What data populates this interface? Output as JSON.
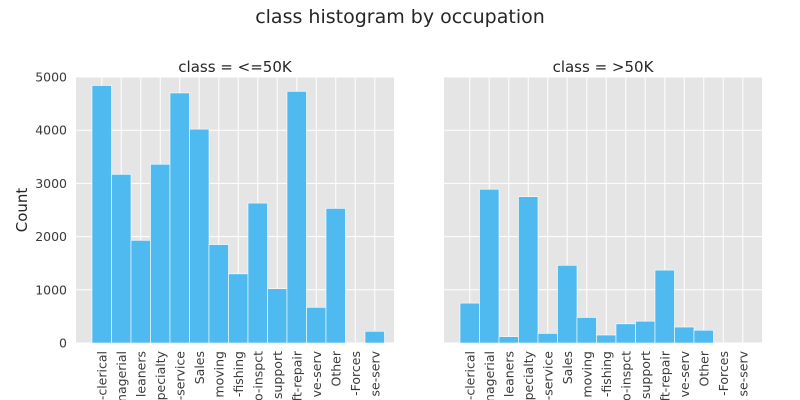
{
  "figure": {
    "title": "class histogram by occupation"
  },
  "chart_data": [
    {
      "type": "bar",
      "title": "class = <=50K",
      "xlabel": "",
      "ylabel": "Count",
      "ylim": [
        0,
        5000
      ],
      "yticks": [
        0,
        1000,
        2000,
        3000,
        4000,
        5000
      ],
      "grid": true,
      "color": "#4fbaf0",
      "background": "#e5e5e5",
      "categories": [
        "-clerical",
        "nagerial",
        "leaners",
        "pecialty",
        "-service",
        "Sales",
        "moving",
        "-fishing",
        "o-inspct",
        "support",
        "ft-repair",
        "ve-serv",
        "Other",
        "-Forces",
        "se-serv"
      ],
      "values": [
        4840,
        3170,
        1930,
        3360,
        4700,
        4020,
        1850,
        1300,
        2630,
        1020,
        4730,
        670,
        2530,
        0,
        220
      ]
    },
    {
      "type": "bar",
      "title": "class = >50K",
      "xlabel": "",
      "ylabel": "",
      "ylim": [
        0,
        5000
      ],
      "yticks": [
        0,
        1000,
        2000,
        3000,
        4000,
        5000
      ],
      "grid": true,
      "color": "#4fbaf0",
      "background": "#e5e5e5",
      "categories": [
        "-clerical",
        "nagerial",
        "leaners",
        "pecialty",
        "-service",
        "Sales",
        "moving",
        "-fishing",
        "o-inspct",
        "support",
        "ft-repair",
        "ve-serv",
        "Other",
        "-Forces",
        "se-serv"
      ],
      "values": [
        750,
        2890,
        120,
        2750,
        180,
        1460,
        480,
        150,
        360,
        410,
        1370,
        300,
        240,
        0,
        0
      ]
    }
  ]
}
